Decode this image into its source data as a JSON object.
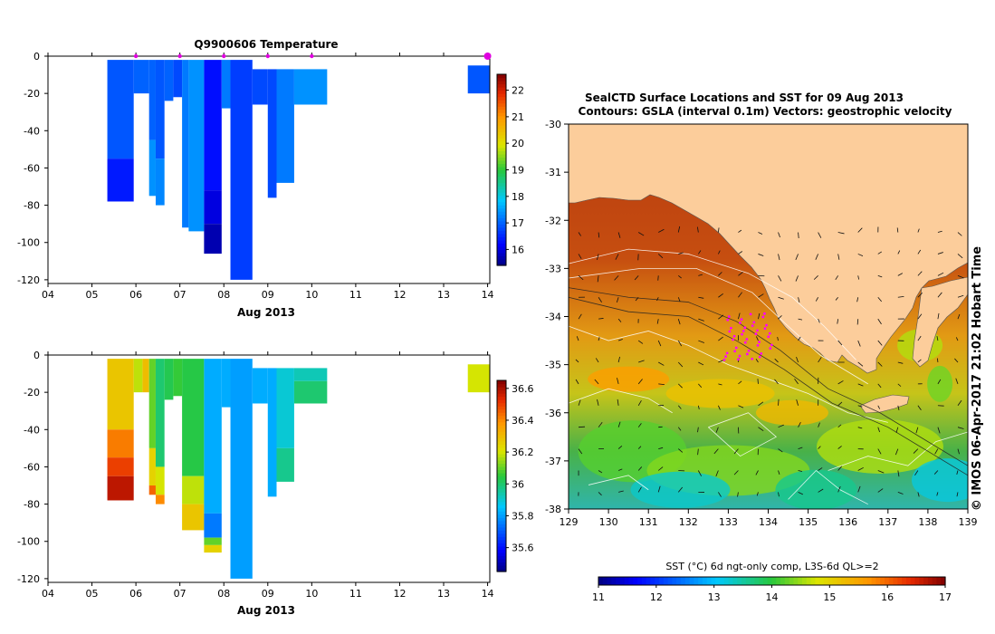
{
  "chart_data": [
    {
      "type": "heatmap",
      "title": "Q9900606  Temperature",
      "xlabel": "Aug 2013",
      "ylabel": "",
      "x_tick_labels": [
        "04",
        "05",
        "06",
        "07",
        "08",
        "09",
        "10",
        "11",
        "12",
        "13",
        "14"
      ],
      "xlim": [
        4,
        14.05
      ],
      "ylim": [
        -122,
        0
      ],
      "y_ticks": [
        0,
        -20,
        -40,
        -60,
        -80,
        -100,
        -120
      ],
      "colorbar": {
        "min": 15.4,
        "max": 22.6,
        "ticks": [
          16,
          17,
          18,
          19,
          20,
          21,
          22
        ]
      },
      "profile_markers_day": [
        6,
        7,
        8,
        9,
        10,
        14
      ],
      "profiles": [
        {
          "x0": 5.35,
          "x1": 5.95,
          "segments": [
            {
              "top": -2,
              "bot": -55,
              "v": 16.9
            },
            {
              "top": -55,
              "bot": -78,
              "v": 16.4
            }
          ]
        },
        {
          "x0": 5.95,
          "x1": 6.3,
          "segments": [
            {
              "top": -2,
              "bot": -20,
              "v": 17.0
            }
          ]
        },
        {
          "x0": 6.3,
          "x1": 6.45,
          "segments": [
            {
              "top": -2,
              "bot": -45,
              "v": 17.0
            },
            {
              "top": -45,
              "bot": -75,
              "v": 17.4
            }
          ]
        },
        {
          "x0": 6.45,
          "x1": 6.65,
          "segments": [
            {
              "top": -2,
              "bot": -55,
              "v": 16.9
            },
            {
              "top": -55,
              "bot": -80,
              "v": 17.3
            }
          ]
        },
        {
          "x0": 6.65,
          "x1": 6.85,
          "segments": [
            {
              "top": -2,
              "bot": -24,
              "v": 17.0
            }
          ]
        },
        {
          "x0": 6.85,
          "x1": 7.05,
          "segments": [
            {
              "top": -2,
              "bot": -22,
              "v": 16.8
            }
          ]
        },
        {
          "x0": 7.05,
          "x1": 7.2,
          "segments": [
            {
              "top": -2,
              "bot": -92,
              "v": 17.2
            }
          ]
        },
        {
          "x0": 7.2,
          "x1": 7.55,
          "segments": [
            {
              "top": -2,
              "bot": -94,
              "v": 17.4
            }
          ]
        },
        {
          "x0": 7.55,
          "x1": 7.95,
          "segments": [
            {
              "top": -2,
              "bot": -72,
              "v": 16.3
            },
            {
              "top": -72,
              "bot": -90,
              "v": 16.0
            },
            {
              "top": -90,
              "bot": -106,
              "v": 15.7
            }
          ]
        },
        {
          "x0": 7.95,
          "x1": 8.15,
          "segments": [
            {
              "top": -2,
              "bot": -28,
              "v": 17.2
            }
          ]
        },
        {
          "x0": 8.15,
          "x1": 8.65,
          "segments": [
            {
              "top": -2,
              "bot": -120,
              "v": 16.7
            }
          ]
        },
        {
          "x0": 8.65,
          "x1": 9.0,
          "segments": [
            {
              "top": -7,
              "bot": -26,
              "v": 16.8
            }
          ]
        },
        {
          "x0": 9.0,
          "x1": 9.2,
          "segments": [
            {
              "top": -7,
              "bot": -76,
              "v": 16.8
            }
          ]
        },
        {
          "x0": 9.2,
          "x1": 9.6,
          "segments": [
            {
              "top": -7,
              "bot": -68,
              "v": 17.2
            }
          ]
        },
        {
          "x0": 9.6,
          "x1": 10.35,
          "segments": [
            {
              "top": -7,
              "bot": -26,
              "v": 17.4
            }
          ]
        },
        {
          "x0": 13.55,
          "x1": 14.05,
          "segments": [
            {
              "top": -5,
              "bot": -20,
              "v": 16.9
            }
          ]
        }
      ]
    },
    {
      "type": "heatmap",
      "title": "",
      "xlabel": "Aug 2013",
      "ylabel": "",
      "x_tick_labels": [
        "04",
        "05",
        "06",
        "07",
        "08",
        "09",
        "10",
        "11",
        "12",
        "13",
        "14"
      ],
      "xlim": [
        4,
        14.05
      ],
      "ylim": [
        -122,
        0
      ],
      "y_ticks": [
        0,
        -20,
        -40,
        -60,
        -80,
        -100,
        -120
      ],
      "colorbar": {
        "min": 35.45,
        "max": 36.65,
        "ticks": [
          35.6,
          35.8,
          36,
          36.2,
          36.4,
          36.6
        ]
      },
      "profiles": [
        {
          "x0": 5.35,
          "x1": 5.95,
          "segments": [
            {
              "top": -2,
              "bot": -40,
              "v": 36.28
            },
            {
              "top": -40,
              "bot": -55,
              "v": 36.42
            },
            {
              "top": -55,
              "bot": -65,
              "v": 36.5
            },
            {
              "top": -65,
              "bot": -78,
              "v": 36.58
            }
          ]
        },
        {
          "x0": 5.95,
          "x1": 6.15,
          "segments": [
            {
              "top": -2,
              "bot": -20,
              "v": 36.18
            }
          ]
        },
        {
          "x0": 6.15,
          "x1": 6.3,
          "segments": [
            {
              "top": -2,
              "bot": -20,
              "v": 36.3
            }
          ]
        },
        {
          "x0": 6.3,
          "x1": 6.45,
          "segments": [
            {
              "top": -2,
              "bot": -50,
              "v": 36.1
            },
            {
              "top": -50,
              "bot": -70,
              "v": 36.25
            },
            {
              "top": -70,
              "bot": -75,
              "v": 36.45
            }
          ]
        },
        {
          "x0": 6.45,
          "x1": 6.65,
          "segments": [
            {
              "top": -2,
              "bot": -60,
              "v": 36.0
            },
            {
              "top": -60,
              "bot": -75,
              "v": 36.2
            },
            {
              "top": -75,
              "bot": -80,
              "v": 36.4
            }
          ]
        },
        {
          "x0": 6.65,
          "x1": 6.85,
          "segments": [
            {
              "top": -2,
              "bot": -24,
              "v": 36.03
            }
          ]
        },
        {
          "x0": 6.85,
          "x1": 7.05,
          "segments": [
            {
              "top": -2,
              "bot": -22,
              "v": 36.06
            }
          ]
        },
        {
          "x0": 7.05,
          "x1": 7.55,
          "segments": [
            {
              "top": -2,
              "bot": -65,
              "v": 36.04
            },
            {
              "top": -65,
              "bot": -80,
              "v": 36.18
            },
            {
              "top": -80,
              "bot": -94,
              "v": 36.28
            }
          ]
        },
        {
          "x0": 7.55,
          "x1": 7.95,
          "segments": [
            {
              "top": -2,
              "bot": -85,
              "v": 35.82
            },
            {
              "top": -85,
              "bot": -98,
              "v": 35.75
            },
            {
              "top": -98,
              "bot": -102,
              "v": 36.1
            },
            {
              "top": -102,
              "bot": -106,
              "v": 36.25
            }
          ]
        },
        {
          "x0": 7.95,
          "x1": 8.15,
          "segments": [
            {
              "top": -2,
              "bot": -28,
              "v": 35.82
            }
          ]
        },
        {
          "x0": 8.15,
          "x1": 8.65,
          "segments": [
            {
              "top": -2,
              "bot": -120,
              "v": 35.8
            }
          ]
        },
        {
          "x0": 8.65,
          "x1": 9.0,
          "segments": [
            {
              "top": -7,
              "bot": -26,
              "v": 35.82
            }
          ]
        },
        {
          "x0": 9.0,
          "x1": 9.2,
          "segments": [
            {
              "top": -7,
              "bot": -76,
              "v": 35.82
            }
          ]
        },
        {
          "x0": 9.2,
          "x1": 9.6,
          "segments": [
            {
              "top": -7,
              "bot": -50,
              "v": 35.9
            },
            {
              "top": -50,
              "bot": -68,
              "v": 35.97
            }
          ]
        },
        {
          "x0": 9.6,
          "x1": 10.35,
          "segments": [
            {
              "top": -7,
              "bot": -14,
              "v": 35.93
            },
            {
              "top": -14,
              "bot": -26,
              "v": 36.0
            }
          ]
        },
        {
          "x0": 13.55,
          "x1": 14.05,
          "segments": [
            {
              "top": -5,
              "bot": -20,
              "v": 36.2
            }
          ]
        }
      ]
    },
    {
      "type": "heatmap",
      "title": "SealCTD Surface Locations and SST for 09 Aug 2013",
      "subtitle": "Contours: GSLA (interval 0.1m)  Vectors: geostrophic velocity",
      "x_tick_labels": [
        "129",
        "130",
        "131",
        "132",
        "133",
        "134",
        "135",
        "136",
        "137",
        "138",
        "139"
      ],
      "y_tick_labels": [
        "-30",
        "-31",
        "-32",
        "-33",
        "-34",
        "-35",
        "-36",
        "-37",
        "-38"
      ],
      "xlim": [
        129,
        139
      ],
      "ylim": [
        -38,
        -30
      ],
      "colorbar": {
        "label": "SST (°C) 6d ngt-only comp, L3S-6d QL>=2",
        "min": 11,
        "max": 17,
        "ticks": [
          "11",
          "12",
          "13",
          "14",
          "15",
          "16",
          "17"
        ]
      },
      "seal_locations_region": {
        "lon": [
          132.9,
          134.1
        ],
        "lat": [
          -34.9,
          -33.9
        ]
      },
      "credit": "© IMOS 06-Apr-2017 21:02 Hobart Time"
    }
  ]
}
